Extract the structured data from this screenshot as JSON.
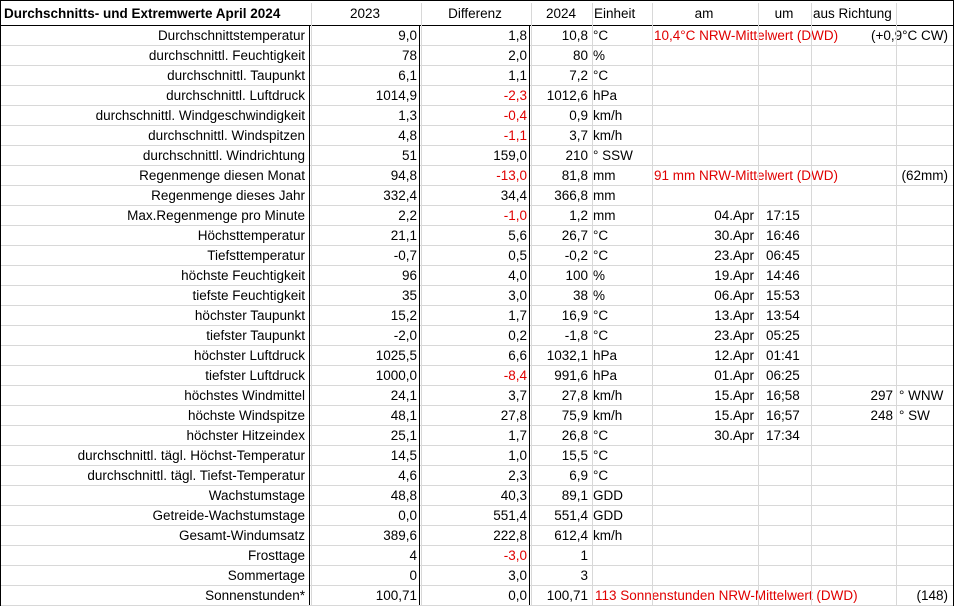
{
  "header": {
    "title": "Durchschnitts- und Extremwerte April 2024",
    "col_2023": "2023",
    "col_diff": "Differenz",
    "col_2024": "2024",
    "col_unit": "Einheit",
    "col_am": "am",
    "col_um": "um",
    "col_richtung": "aus Richtung"
  },
  "rows": [
    {
      "label": "Durchschnittstemperatur",
      "v2023": "9,0",
      "diff": "1,8",
      "diff_neg": false,
      "v2024": "10,8",
      "unit": "°C",
      "note": "10,4°C NRW-Mittelwert (DWD)",
      "extra": "(+0,9°C CW)"
    },
    {
      "label": "durchschnittl. Feuchtigkeit",
      "v2023": "78",
      "diff": "2,0",
      "diff_neg": false,
      "v2024": "80",
      "unit": "%"
    },
    {
      "label": "durchschnittl. Taupunkt",
      "v2023": "6,1",
      "diff": "1,1",
      "diff_neg": false,
      "v2024": "7,2",
      "unit": "°C"
    },
    {
      "label": "durchschnittl. Luftdruck",
      "v2023": "1014,9",
      "diff": "-2,3",
      "diff_neg": true,
      "v2024": "1012,6",
      "unit": " hPa"
    },
    {
      "label": "durchschnittl. Windgeschwindigkeit",
      "v2023": "1,3",
      "diff": "-0,4",
      "diff_neg": true,
      "v2024": "0,9",
      "unit": "km/h"
    },
    {
      "label": "durchschnittl. Windspitzen",
      "v2023": "4,8",
      "diff": "-1,1",
      "diff_neg": true,
      "v2024": "3,7",
      "unit": "km/h"
    },
    {
      "label": "durchschnittl. Windrichtung",
      "v2023": "51",
      "diff": "159,0",
      "diff_neg": false,
      "v2024": "210",
      "unit": "°  SSW"
    },
    {
      "label": "Regenmenge diesen Monat",
      "v2023": "94,8",
      "diff": "-13,0",
      "diff_neg": true,
      "v2024": "81,8",
      "unit": "mm",
      "note": "91 mm NRW-Mittelwert (DWD)",
      "extra": "(62mm)"
    },
    {
      "label": "Regenmenge dieses Jahr",
      "v2023": "332,4",
      "diff": "34,4",
      "diff_neg": false,
      "v2024": "366,8",
      "unit": "mm"
    },
    {
      "label": "Max.Regenmenge pro Minute",
      "v2023": "2,2",
      "diff": "-1,0",
      "diff_neg": true,
      "v2024": "1,2",
      "unit": "mm",
      "am": "04.Apr",
      "um": "17:15"
    },
    {
      "label": "Höchsttemperatur",
      "v2023": "21,1",
      "diff": "5,6",
      "diff_neg": false,
      "v2024": "26,7",
      "unit": "°C",
      "am": "30.Apr",
      "um": "16:46"
    },
    {
      "label": "Tiefsttemperatur",
      "v2023": "-0,7",
      "diff": "0,5",
      "diff_neg": false,
      "v2024": "-0,2",
      "unit": "°C",
      "am": "23.Apr",
      "um": "06:45"
    },
    {
      "label": "höchste Feuchtigkeit",
      "v2023": "96",
      "diff": "4,0",
      "diff_neg": false,
      "v2024": "100",
      "unit": "%",
      "am": "19.Apr",
      "um": "14:46"
    },
    {
      "label": "tiefste Feuchtigkeit",
      "v2023": "35",
      "diff": "3,0",
      "diff_neg": false,
      "v2024": "38",
      "unit": "%",
      "am": "06.Apr",
      "um": "15:53"
    },
    {
      "label": "höchster Taupunkt",
      "v2023": "15,2",
      "diff": "1,7",
      "diff_neg": false,
      "v2024": "16,9",
      "unit": "°C",
      "am": "13.Apr",
      "um": "13:54"
    },
    {
      "label": "tiefster Taupunkt",
      "v2023": "-2,0",
      "diff": "0,2",
      "diff_neg": false,
      "v2024": "-1,8",
      "unit": "°C",
      "am": "23.Apr",
      "um": "05:25"
    },
    {
      "label": "höchster Luftdruck",
      "v2023": "1025,5",
      "diff": "6,6",
      "diff_neg": false,
      "v2024": "1032,1",
      "unit": "hPa",
      "am": "12.Apr",
      "um": "01:41"
    },
    {
      "label": "tiefster Luftdruck",
      "v2023": "1000,0",
      "diff": "-8,4",
      "diff_neg": true,
      "v2024": "991,6",
      "unit": " hPa",
      "am": "01.Apr",
      "um": "06:25"
    },
    {
      "label": "höchstes Windmittel",
      "v2023": "24,1",
      "diff": "3,7",
      "diff_neg": false,
      "v2024": "27,8",
      "unit": " km/h",
      "am": "15.Apr",
      "um": "16;58",
      "deg": "297",
      "dir": "° WNW"
    },
    {
      "label": "höchste Windspitze",
      "v2023": "48,1",
      "diff": "27,8",
      "diff_neg": false,
      "v2024": "75,9",
      "unit": " km/h",
      "am": "15.Apr",
      "um": "16;57",
      "deg": "248",
      "dir": "° SW"
    },
    {
      "label": "höchster Hitzeindex",
      "v2023": "25,1",
      "diff": "1,7",
      "diff_neg": false,
      "v2024": "26,8",
      "unit": "°C",
      "am": "30.Apr",
      "um": "17:34"
    },
    {
      "label": "durchschnittl. tägl. Höchst-Temperatur",
      "v2023": "14,5",
      "diff": "1,0",
      "diff_neg": false,
      "v2024": "15,5",
      "unit": "°C"
    },
    {
      "label": "durchschnittl. tägl. Tiefst-Temperatur",
      "v2023": "4,6",
      "diff": "2,3",
      "diff_neg": false,
      "v2024": "6,9",
      "unit": "°C"
    },
    {
      "label": "Wachstumstage",
      "v2023": "48,8",
      "diff": "40,3",
      "diff_neg": false,
      "v2024": "89,1",
      "unit": " GDD"
    },
    {
      "label": "Getreide-Wachstumstage",
      "v2023": "0,0",
      "diff": "551,4",
      "diff_neg": false,
      "v2024": "551,4",
      "unit": " GDD"
    },
    {
      "label": "Gesamt-Windumsatz",
      "v2023": "389,6",
      "diff": "222,8",
      "diff_neg": false,
      "v2024": "612,4",
      "unit": " km/h"
    },
    {
      "label": "Frosttage",
      "v2023": "4",
      "diff": "-3,0",
      "diff_neg": true,
      "v2024": "1",
      "unit": ""
    },
    {
      "label": "Sommertage",
      "v2023": "0",
      "diff": "3,0",
      "diff_neg": false,
      "v2024": "3",
      "unit": ""
    },
    {
      "label": "Sonnenstunden*",
      "v2023": "100,71",
      "diff": "0,0",
      "diff_neg": false,
      "v2024": "100,71",
      "unit": "",
      "note": "113 Sonnenstunden NRW-Mittelwert (DWD)",
      "extra": "(148)",
      "note_from_unit": true
    }
  ]
}
